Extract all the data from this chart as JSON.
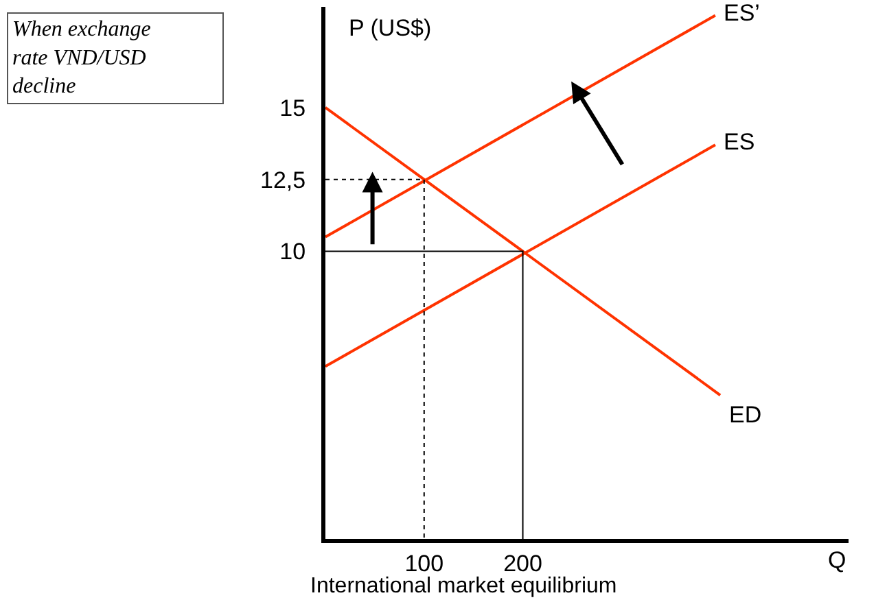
{
  "chart_data": {
    "type": "line",
    "title": "International market equilibrium",
    "xlabel": "Q",
    "ylabel": "P (US$)",
    "annotations": [
      "When exchange rate VND/USD decline"
    ],
    "series": [
      {
        "name": "ES’",
        "color": "#ff3300",
        "x": [
          0,
          395
        ],
        "values": [
          10.5,
          18.2
        ]
      },
      {
        "name": "ES",
        "color": "#ff3300",
        "x": [
          0,
          395
        ],
        "values": [
          6,
          13.7
        ]
      },
      {
        "name": "ED",
        "color": "#ff3300",
        "x": [
          0,
          400
        ],
        "values": [
          15,
          5
        ]
      },
      {
        "color": "#000000",
        "line_style": "dotted",
        "x": [
          0,
          100,
          100
        ],
        "values": [
          12.5,
          12.5,
          0
        ]
      },
      {
        "color": "#000000",
        "line_style": "solid",
        "x": [
          0,
          200,
          200
        ],
        "values": [
          10,
          10,
          0
        ]
      }
    ],
    "xlim": [
      0,
      530
    ],
    "ylim": [
      0,
      18.5
    ],
    "xticks": [
      100,
      200
    ],
    "yticks": [
      10,
      {
        "value": 12.5,
        "label": "12,5"
      },
      15
    ],
    "legend": false,
    "marker": "none",
    "line_style": "solid"
  }
}
